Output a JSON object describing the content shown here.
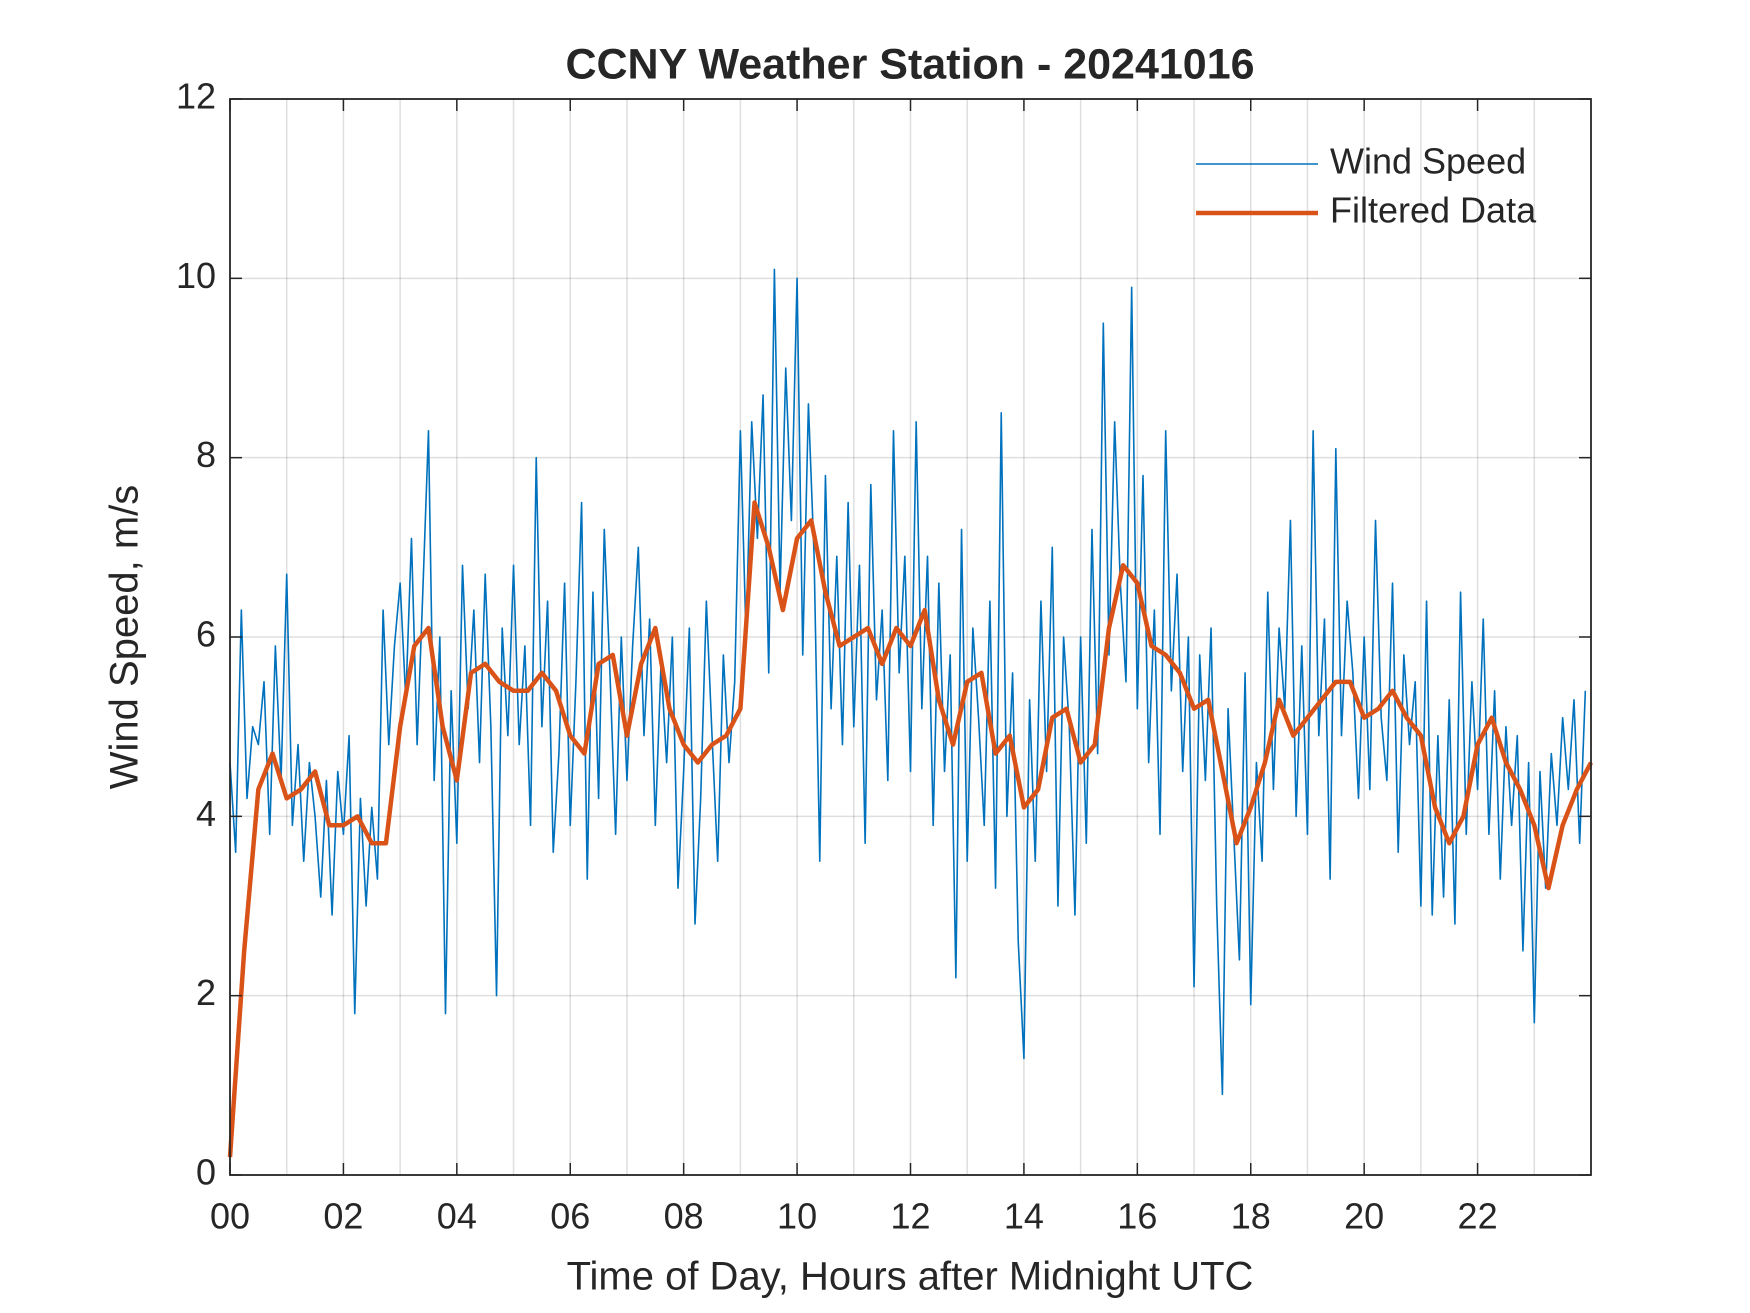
{
  "chart_data": {
    "type": "line",
    "title": "CCNY Weather Station - 20241016",
    "x_label": "Time of Day, Hours after Midnight UTC",
    "y_label": "Wind Speed, m/s",
    "xlim": [
      0,
      24
    ],
    "ylim": [
      0,
      12
    ],
    "xticks": [
      {
        "value": 0,
        "label": "00"
      },
      {
        "value": 2,
        "label": "02"
      },
      {
        "value": 4,
        "label": "04"
      },
      {
        "value": 6,
        "label": "06"
      },
      {
        "value": 8,
        "label": "08"
      },
      {
        "value": 10,
        "label": "10"
      },
      {
        "value": 12,
        "label": "12"
      },
      {
        "value": 14,
        "label": "14"
      },
      {
        "value": 16,
        "label": "16"
      },
      {
        "value": 18,
        "label": "18"
      },
      {
        "value": 20,
        "label": "20"
      },
      {
        "value": 22,
        "label": "22"
      }
    ],
    "x_minor_grid": [
      1,
      3,
      5,
      7,
      9,
      11,
      13,
      15,
      17,
      19,
      21,
      23
    ],
    "yticks": [
      0,
      2,
      4,
      6,
      8,
      10,
      12
    ],
    "grid": true,
    "legend": "northeast",
    "series": [
      {
        "name": "Wind Speed",
        "color": "#0072BD",
        "width": 1.6,
        "x": [
          0,
          0.1,
          0.2,
          0.3,
          0.4,
          0.5,
          0.6,
          0.7,
          0.8,
          0.9,
          1,
          1.1,
          1.2,
          1.3,
          1.4,
          1.5,
          1.6,
          1.7,
          1.8,
          1.9,
          2,
          2.1,
          2.2,
          2.3,
          2.4,
          2.5,
          2.6,
          2.7,
          2.8,
          2.9,
          3,
          3.1,
          3.2,
          3.3,
          3.4,
          3.5,
          3.6,
          3.7,
          3.8,
          3.9,
          4,
          4.1,
          4.2,
          4.3,
          4.4,
          4.5,
          4.6,
          4.7,
          4.8,
          4.9,
          5,
          5.1,
          5.2,
          5.3,
          5.4,
          5.5,
          5.6,
          5.7,
          5.8,
          5.9,
          6,
          6.1,
          6.2,
          6.3,
          6.4,
          6.5,
          6.6,
          6.7,
          6.8,
          6.9,
          7,
          7.1,
          7.2,
          7.3,
          7.4,
          7.5,
          7.6,
          7.7,
          7.8,
          7.9,
          8,
          8.1,
          8.2,
          8.3,
          8.4,
          8.5,
          8.6,
          8.7,
          8.8,
          8.9,
          9,
          9.1,
          9.2,
          9.3,
          9.4,
          9.5,
          9.6,
          9.7,
          9.8,
          9.9,
          10,
          10.1,
          10.2,
          10.3,
          10.4,
          10.5,
          10.6,
          10.7,
          10.8,
          10.9,
          11,
          11.1,
          11.2,
          11.3,
          11.4,
          11.5,
          11.6,
          11.7,
          11.8,
          11.9,
          12,
          12.1,
          12.2,
          12.3,
          12.4,
          12.5,
          12.6,
          12.7,
          12.8,
          12.9,
          13,
          13.1,
          13.2,
          13.3,
          13.4,
          13.5,
          13.6,
          13.7,
          13.8,
          13.9,
          14,
          14.1,
          14.2,
          14.3,
          14.4,
          14.5,
          14.6,
          14.7,
          14.8,
          14.9,
          15,
          15.1,
          15.2,
          15.3,
          15.4,
          15.5,
          15.6,
          15.7,
          15.8,
          15.9,
          16,
          16.1,
          16.2,
          16.3,
          16.4,
          16.5,
          16.6,
          16.7,
          16.8,
          16.9,
          17,
          17.1,
          17.2,
          17.3,
          17.4,
          17.5,
          17.6,
          17.7,
          17.8,
          17.9,
          18,
          18.1,
          18.2,
          18.3,
          18.4,
          18.5,
          18.6,
          18.7,
          18.8,
          18.9,
          19,
          19.1,
          19.2,
          19.3,
          19.4,
          19.5,
          19.6,
          19.7,
          19.8,
          19.9,
          20,
          20.1,
          20.2,
          20.3,
          20.4,
          20.5,
          20.6,
          20.7,
          20.8,
          20.9,
          21,
          21.1,
          21.2,
          21.3,
          21.4,
          21.5,
          21.6,
          21.7,
          21.8,
          21.9,
          22,
          22.1,
          22.2,
          22.3,
          22.4,
          22.5,
          22.6,
          22.7,
          22.8,
          22.9,
          23,
          23.1,
          23.2,
          23.3,
          23.4,
          23.5,
          23.6,
          23.7,
          23.8,
          23.9
        ],
        "values": [
          4.6,
          3.6,
          6.3,
          4.2,
          5.0,
          4.8,
          5.5,
          3.8,
          5.9,
          4.4,
          6.7,
          3.9,
          4.8,
          3.5,
          4.6,
          4.0,
          3.1,
          4.4,
          2.9,
          4.5,
          3.8,
          4.9,
          1.8,
          4.2,
          3.0,
          4.1,
          3.3,
          6.3,
          4.8,
          5.9,
          6.6,
          5.3,
          7.1,
          4.8,
          6.5,
          8.3,
          4.4,
          6.0,
          1.8,
          5.4,
          3.7,
          6.8,
          5.2,
          6.3,
          4.6,
          6.7,
          5.0,
          2.0,
          6.1,
          4.9,
          6.8,
          4.8,
          5.9,
          3.9,
          8.0,
          5.0,
          6.4,
          3.6,
          4.7,
          6.6,
          3.9,
          5.5,
          7.5,
          3.3,
          6.5,
          4.2,
          7.2,
          5.6,
          3.8,
          6.0,
          4.4,
          5.9,
          7.0,
          4.9,
          6.2,
          3.9,
          5.7,
          4.6,
          6.0,
          3.2,
          4.5,
          6.1,
          2.8,
          4.2,
          6.4,
          4.9,
          3.5,
          5.8,
          4.6,
          5.5,
          8.3,
          6.0,
          8.4,
          7.1,
          8.7,
          5.6,
          10.1,
          6.5,
          9.0,
          7.3,
          10.0,
          5.8,
          8.6,
          6.9,
          3.5,
          7.8,
          5.2,
          6.9,
          4.8,
          7.5,
          5.0,
          6.8,
          3.7,
          7.7,
          5.3,
          6.3,
          4.4,
          8.3,
          5.6,
          6.9,
          4.5,
          8.4,
          5.2,
          6.9,
          3.9,
          6.6,
          4.5,
          5.8,
          2.2,
          7.2,
          3.5,
          6.1,
          5.1,
          3.9,
          6.4,
          3.2,
          8.5,
          4.0,
          5.6,
          2.6,
          1.3,
          5.3,
          3.5,
          6.4,
          4.5,
          7.0,
          3.0,
          6.0,
          5.0,
          2.9,
          6.0,
          3.7,
          7.2,
          4.7,
          9.5,
          5.8,
          8.4,
          6.6,
          5.5,
          9.9,
          5.2,
          7.8,
          4.6,
          6.3,
          3.8,
          8.3,
          5.4,
          6.7,
          4.5,
          6.0,
          2.1,
          5.8,
          4.4,
          6.1,
          3.0,
          0.9,
          5.2,
          3.8,
          2.4,
          5.6,
          1.9,
          4.6,
          3.5,
          6.5,
          4.3,
          6.1,
          5.2,
          7.3,
          4.0,
          5.9,
          3.8,
          8.3,
          4.9,
          6.2,
          3.3,
          8.1,
          4.9,
          6.4,
          5.6,
          4.2,
          6.0,
          4.3,
          7.3,
          5.1,
          4.4,
          6.6,
          3.6,
          5.8,
          4.8,
          5.5,
          3.0,
          6.4,
          2.9,
          4.9,
          3.1,
          5.3,
          2.8,
          6.5,
          3.8,
          5.5,
          4.3,
          6.2,
          3.8,
          5.4,
          3.3,
          5.0,
          3.9,
          4.9,
          2.5,
          4.6,
          1.7,
          4.5,
          3.2,
          4.7,
          3.9,
          5.1,
          4.3,
          5.3,
          3.7,
          5.4
        ]
      },
      {
        "name": "Filtered Data",
        "color": "#D95319",
        "width": 4.5,
        "x": [
          0,
          0.25,
          0.5,
          0.75,
          1,
          1.25,
          1.5,
          1.75,
          2,
          2.25,
          2.5,
          2.75,
          3,
          3.25,
          3.5,
          3.75,
          4,
          4.25,
          4.5,
          4.75,
          5,
          5.25,
          5.5,
          5.75,
          6,
          6.25,
          6.5,
          6.75,
          7,
          7.25,
          7.5,
          7.75,
          8,
          8.25,
          8.5,
          8.75,
          9,
          9.25,
          9.5,
          9.75,
          10,
          10.25,
          10.5,
          10.75,
          11,
          11.25,
          11.5,
          11.75,
          12,
          12.25,
          12.5,
          12.75,
          13,
          13.25,
          13.5,
          13.75,
          14,
          14.25,
          14.5,
          14.75,
          15,
          15.25,
          15.5,
          15.75,
          16,
          16.25,
          16.5,
          16.75,
          17,
          17.25,
          17.5,
          17.75,
          18,
          18.25,
          18.5,
          18.75,
          19,
          19.25,
          19.5,
          19.75,
          20,
          20.25,
          20.5,
          20.75,
          21,
          21.25,
          21.5,
          21.75,
          22,
          22.25,
          22.5,
          22.75,
          23,
          23.25,
          23.5,
          23.75,
          24
        ],
        "values": [
          0.2,
          2.5,
          4.3,
          4.7,
          4.2,
          4.3,
          4.5,
          3.9,
          3.9,
          4.0,
          3.7,
          3.7,
          5.0,
          5.9,
          6.1,
          5.0,
          4.4,
          5.6,
          5.7,
          5.5,
          5.4,
          5.4,
          5.6,
          5.4,
          4.9,
          4.7,
          5.7,
          5.8,
          4.9,
          5.7,
          6.1,
          5.2,
          4.8,
          4.6,
          4.8,
          4.9,
          5.2,
          7.5,
          7.0,
          6.3,
          7.1,
          7.3,
          6.5,
          5.9,
          6.0,
          6.1,
          5.7,
          6.1,
          5.9,
          6.3,
          5.3,
          4.8,
          5.5,
          5.6,
          4.7,
          4.9,
          4.1,
          4.3,
          5.1,
          5.2,
          4.6,
          4.8,
          6.1,
          6.8,
          6.6,
          5.9,
          5.8,
          5.6,
          5.2,
          5.3,
          4.5,
          3.7,
          4.1,
          4.6,
          5.3,
          4.9,
          5.1,
          5.3,
          5.5,
          5.5,
          5.1,
          5.2,
          5.4,
          5.1,
          4.9,
          4.1,
          3.7,
          4.0,
          4.8,
          5.1,
          4.6,
          4.3,
          3.9,
          3.2,
          3.9,
          4.3,
          4.6
        ]
      }
    ]
  }
}
